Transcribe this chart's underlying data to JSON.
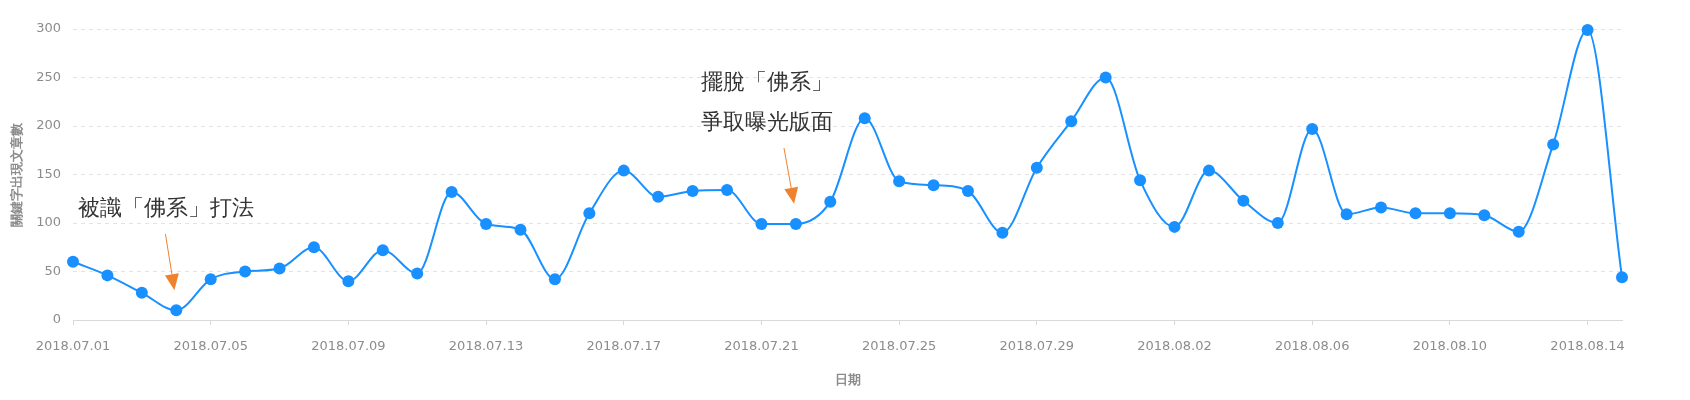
{
  "chart_data": {
    "type": "line",
    "xlabel": "日期",
    "ylabel": "關鍵字出現文章數",
    "x": [
      "2018-07-01",
      "2018-07-02",
      "2018-07-03",
      "2018-07-04",
      "2018-07-05",
      "2018-07-06",
      "2018-07-07",
      "2018-07-08",
      "2018-07-09",
      "2018-07-10",
      "2018-07-11",
      "2018-07-12",
      "2018-07-13",
      "2018-07-14",
      "2018-07-15",
      "2018-07-16",
      "2018-07-17",
      "2018-07-18",
      "2018-07-19",
      "2018-07-20",
      "2018-07-21",
      "2018-07-22",
      "2018-07-23",
      "2018-07-24",
      "2018-07-25",
      "2018-07-26",
      "2018-07-27",
      "2018-07-28",
      "2018-07-29",
      "2018-07-30",
      "2018-07-31",
      "2018-08-01",
      "2018-08-02",
      "2018-08-03",
      "2018-08-04",
      "2018-08-05",
      "2018-08-06",
      "2018-08-07",
      "2018-08-08",
      "2018-08-09",
      "2018-08-10",
      "2018-08-11",
      "2018-08-12",
      "2018-08-13",
      "2018-08-14",
      "2018-08-15"
    ],
    "series": [
      {
        "color": "#1890ff",
        "values": [
          60,
          46,
          28,
          10,
          42,
          50,
          53,
          75,
          40,
          72,
          48,
          132,
          99,
          93,
          42,
          110,
          154,
          127,
          133,
          134,
          99,
          99,
          122,
          208,
          143,
          139,
          133,
          90,
          157,
          205,
          250,
          144,
          96,
          154,
          123,
          100,
          197,
          109,
          116,
          110,
          110,
          108,
          91,
          181,
          299,
          44
        ]
      }
    ],
    "xlim": [
      "2018-07-01",
      "2018-08-15"
    ],
    "xticks": [
      {
        "value": "2018-07-01",
        "label": "2018.07.01"
      },
      {
        "value": "2018-07-05",
        "label": "2018.07.05"
      },
      {
        "value": "2018-07-09",
        "label": "2018.07.09"
      },
      {
        "value": "2018-07-13",
        "label": "2018.07.13"
      },
      {
        "value": "2018-07-17",
        "label": "2018.07.17"
      },
      {
        "value": "2018-07-21",
        "label": "2018.07.21"
      },
      {
        "value": "2018-07-25",
        "label": "2018.07.25"
      },
      {
        "value": "2018-07-29",
        "label": "2018.07.29"
      },
      {
        "value": "2018-08-02",
        "label": "2018.08.02"
      },
      {
        "value": "2018-08-06",
        "label": "2018.08.06"
      },
      {
        "value": "2018-08-10",
        "label": "2018.08.10"
      },
      {
        "value": "2018-08-14",
        "label": "2018.08.14"
      }
    ],
    "ylim": [
      0,
      300
    ],
    "yticks": [
      0,
      50,
      100,
      150,
      200,
      250,
      300
    ],
    "grid": "y",
    "marker": "circle",
    "annotations": [
      "被識「佛系」打法",
      "擺脫「佛系」爭取曝光版面"
    ]
  }
}
